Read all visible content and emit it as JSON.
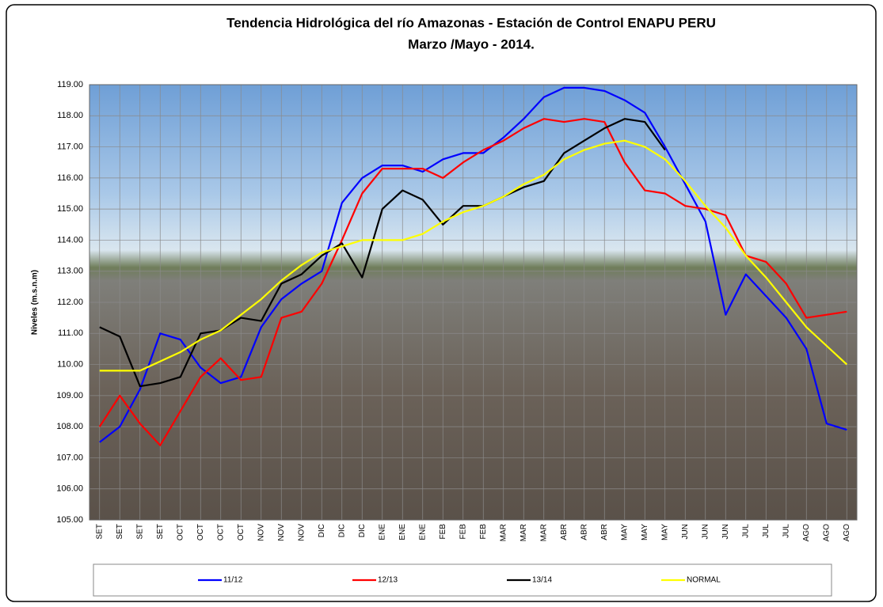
{
  "chart_data": {
    "type": "line",
    "title": "Tendencia  Hidrológica del río Amazonas - Estación de Control ENAPU PERU",
    "subtitle": "Marzo /Mayo - 2014.",
    "y_label": "Niveles (m.s.n.m)",
    "categories": [
      "SET",
      "SET",
      "SET",
      "SET",
      "OCT",
      "OCT",
      "OCT",
      "OCT",
      "NOV",
      "NOV",
      "NOV",
      "DIC",
      "DIC",
      "DIC",
      "ENE",
      "ENE",
      "ENE",
      "FEB",
      "FEB",
      "FEB",
      "MAR",
      "MAR",
      "MAR",
      "ABR",
      "ABR",
      "ABR",
      "MAY",
      "MAY",
      "MAY",
      "JUN",
      "JUN",
      "JUN",
      "JUL",
      "JUL",
      "JUL",
      "AGO",
      "AGO",
      "AGO"
    ],
    "series": [
      {
        "name": "11/12",
        "color": "#0000ff",
        "values": [
          107.5,
          108.0,
          109.2,
          111.0,
          110.8,
          109.9,
          109.4,
          109.6,
          111.2,
          112.1,
          112.6,
          113.0,
          115.2,
          116.0,
          116.4,
          116.4,
          116.2,
          116.6,
          116.8,
          116.8,
          117.3,
          117.9,
          118.6,
          118.9,
          118.9,
          118.8,
          118.5,
          118.1,
          117.0,
          115.8,
          114.6,
          111.6,
          112.9,
          112.2,
          111.5,
          110.5,
          108.1,
          107.9
        ]
      },
      {
        "name": "12/13",
        "color": "#ff0000",
        "values": [
          108.0,
          109.0,
          108.1,
          107.4,
          108.5,
          109.6,
          110.2,
          109.5,
          109.6,
          111.5,
          111.7,
          112.6,
          114.0,
          115.5,
          116.3,
          116.3,
          116.3,
          116.0,
          116.5,
          116.9,
          117.2,
          117.6,
          117.9,
          117.8,
          117.9,
          117.8,
          116.5,
          115.6,
          115.5,
          115.1,
          115.0,
          114.8,
          113.5,
          113.3,
          112.6,
          111.5,
          111.6,
          111.7
        ]
      },
      {
        "name": "13/14",
        "color": "#000000",
        "values": [
          111.2,
          110.9,
          109.3,
          109.4,
          109.6,
          111.0,
          111.1,
          111.5,
          111.4,
          112.6,
          112.9,
          113.5,
          113.9,
          112.8,
          115.0,
          115.6,
          115.3,
          114.5,
          115.1,
          115.1,
          115.4,
          115.7,
          115.9,
          116.8,
          117.2,
          117.6,
          117.9,
          117.8,
          116.9,
          null,
          null,
          null,
          null,
          null,
          null,
          null,
          null,
          null
        ]
      },
      {
        "name": "NORMAL",
        "color": "#ffff00",
        "values": [
          109.8,
          109.8,
          109.8,
          110.1,
          110.4,
          110.8,
          111.1,
          111.6,
          112.1,
          112.7,
          113.2,
          113.6,
          113.8,
          114.0,
          114.0,
          114.0,
          114.2,
          114.6,
          114.9,
          115.1,
          115.4,
          115.8,
          116.1,
          116.6,
          116.9,
          117.1,
          117.2,
          117.0,
          116.6,
          115.9,
          115.1,
          114.4,
          113.5,
          112.8,
          112.0,
          111.2,
          110.6,
          110.0
        ]
      }
    ],
    "ylim": [
      105,
      119
    ],
    "yticks": [
      {
        "value": 105,
        "label": "105.00"
      },
      {
        "value": 106,
        "label": "106.00"
      },
      {
        "value": 107,
        "label": "107.00"
      },
      {
        "value": 108,
        "label": "108.00"
      },
      {
        "value": 109,
        "label": "109.00"
      },
      {
        "value": 110,
        "label": "110.00"
      },
      {
        "value": 111,
        "label": "111.00"
      },
      {
        "value": 112,
        "label": "112.00"
      },
      {
        "value": 113,
        "label": "113.00"
      },
      {
        "value": 114,
        "label": "114.00"
      },
      {
        "value": 115,
        "label": "115.00"
      },
      {
        "value": 116,
        "label": "116.00"
      },
      {
        "value": 117,
        "label": "117.00"
      },
      {
        "value": 118,
        "label": "118.00"
      },
      {
        "value": 119,
        "label": "119.00"
      }
    ],
    "grid": true,
    "legend": "bottom"
  }
}
